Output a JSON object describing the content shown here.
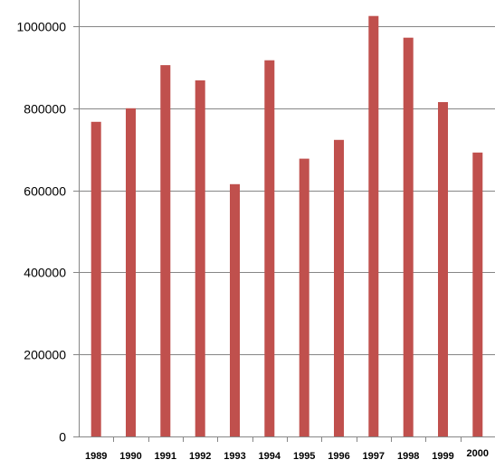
{
  "chart_data": {
    "type": "bar",
    "title": "",
    "xlabel": "",
    "ylabel": "",
    "categories": [
      "1989",
      "1990",
      "1991",
      "1992",
      "1993",
      "1994",
      "1995",
      "1996",
      "1997",
      "1998",
      "1999",
      "2000"
    ],
    "values": [
      767000,
      800000,
      905000,
      868000,
      615000,
      917000,
      677000,
      723000,
      1025000,
      972000,
      815000,
      692000
    ],
    "ylim": [
      0,
      1000000
    ],
    "yticks": [
      0,
      200000,
      400000,
      600000,
      800000,
      1000000
    ],
    "ytick_labels": [
      "0",
      "200000",
      "400000",
      "600000",
      "800000",
      "1000000"
    ],
    "grid": true,
    "legend": "none",
    "bar_color": "#c0504d"
  }
}
